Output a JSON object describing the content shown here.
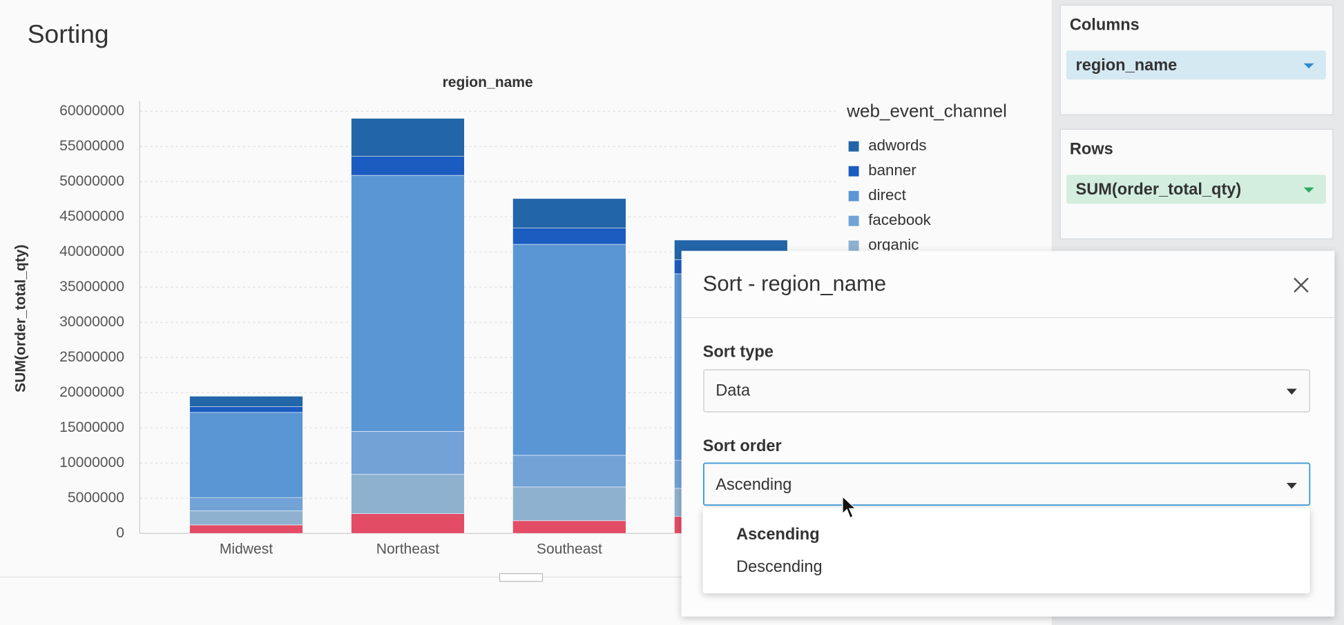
{
  "header": {
    "title": "Sorting"
  },
  "chart_data": {
    "type": "bar",
    "stacked": true,
    "x_label": "region_name",
    "y_label": "SUM(order_total_qty)",
    "legend_title": "web_event_channel",
    "categories": [
      "Midwest",
      "Northeast",
      "Southeast",
      null
    ],
    "series": [
      {
        "name": "adwords",
        "color": "#2265a8",
        "values": [
          1500000,
          5400000,
          4200000,
          2800000
        ]
      },
      {
        "name": "banner",
        "color": "#1b5cc0",
        "values": [
          800000,
          2700000,
          2300000,
          2000000
        ]
      },
      {
        "name": "direct",
        "color": "#5b96d4",
        "values": [
          12100000,
          36400000,
          30000000,
          26500000
        ]
      },
      {
        "name": "facebook",
        "color": "#72a2d6",
        "values": [
          1900000,
          6100000,
          4500000,
          4000000
        ]
      },
      {
        "name": "organic",
        "color": "#8eb1cf",
        "values": [
          2000000,
          5600000,
          4800000,
          4000000
        ]
      },
      {
        "name": null,
        "color": "#e24c64",
        "values": [
          1200000,
          2800000,
          1800000,
          2400000
        ]
      }
    ],
    "ylim": [
      0,
      60000000
    ],
    "yticks": [
      0,
      5000000,
      10000000,
      15000000,
      20000000,
      25000000,
      30000000,
      35000000,
      40000000,
      45000000,
      50000000,
      55000000,
      60000000
    ],
    "grid": true
  },
  "panels": {
    "columns": {
      "title": "Columns",
      "field": "region_name"
    },
    "rows": {
      "title": "Rows",
      "field": "SUM(order_total_qty)"
    }
  },
  "dialog": {
    "title": "Sort - region_name",
    "sort_type_label": "Sort type",
    "sort_type_value": "Data",
    "sort_order_label": "Sort order",
    "sort_order_value": "Ascending",
    "options": [
      "Ascending",
      "Descending"
    ]
  }
}
